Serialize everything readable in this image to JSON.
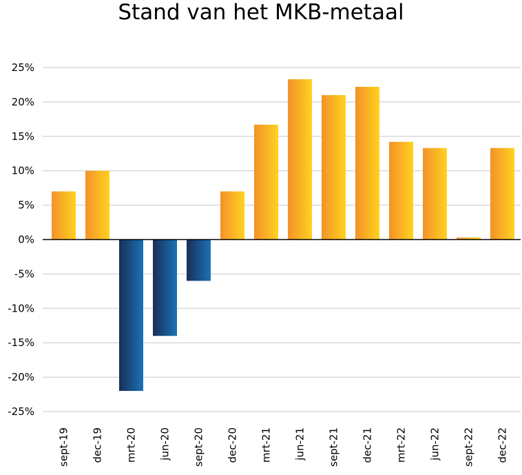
{
  "chart_data": {
    "type": "bar",
    "title": "Stand van het MKB-metaal",
    "xlabel": "",
    "ylabel": "",
    "categories": [
      "sept-19",
      "dec-19",
      "mrt-20",
      "jun-20",
      "sept-20",
      "dec-20",
      "mrt-21",
      "jun-21",
      "sept-21",
      "dec-21",
      "mrt-22",
      "jun-22",
      "sept-22",
      "dec-22"
    ],
    "values": [
      7.0,
      10.0,
      -22.0,
      -14.0,
      -6.0,
      7.0,
      16.7,
      23.3,
      21.0,
      22.2,
      14.2,
      13.3,
      0.3,
      13.3
    ],
    "ylim": [
      -25,
      25
    ],
    "ytick_values": [
      -25,
      -20,
      -15,
      -10,
      -5,
      0,
      5,
      10,
      15,
      20,
      25
    ],
    "ytick_labels": [
      "-25%",
      "-20%",
      "-15%",
      "-10%",
      "-5%",
      "0%",
      "5%",
      "10%",
      "15%",
      "20%",
      "25%"
    ],
    "grid": true,
    "legend": "none",
    "colors": {
      "positive_light": "#ffd21f",
      "positive_dark": "#f3922a",
      "negative_light": "#1a73b5",
      "negative_dark": "#1a2e5a",
      "grid": "#c8c8c8",
      "zero_line": "#000000"
    }
  }
}
